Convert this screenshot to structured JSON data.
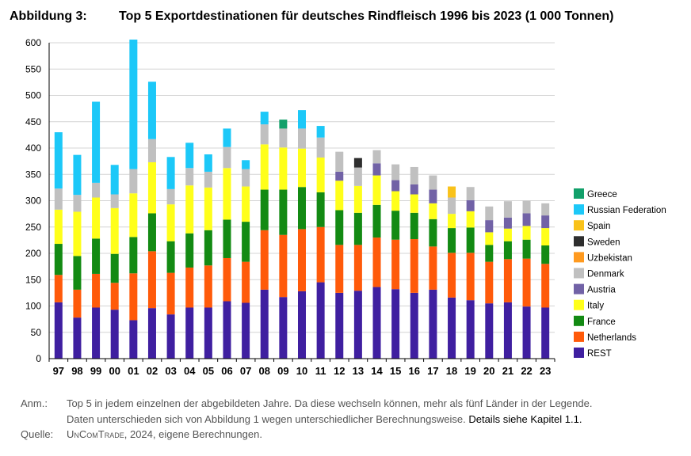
{
  "title": {
    "label": "Abbildung 3:",
    "text": "Top 5 Exportdestinationen für deutsches Rindfleisch 1996 bis 2023 (1 000 Tonnen)"
  },
  "notes": {
    "anm_label": "Anm.:",
    "anm_line1": "Top 5 in jedem einzelnen der abgebildeten Jahre. Da diese wechseln können, mehr als fünf Länder in der Legende.",
    "anm_line2": "Daten unterschieden sich von Abbildung 1 wegen unterschiedlicher Berechnungsweise.",
    "anm_link": "Details siehe Kapitel 1.1.",
    "source_label": "Quelle:",
    "source_name": "UnComTrade",
    "source_rest": ", 2024, eigene Berechnungen."
  },
  "chart_data": {
    "type": "bar",
    "stacked": true,
    "categories": [
      "97",
      "98",
      "99",
      "00",
      "01",
      "02",
      "03",
      "04",
      "05",
      "06",
      "07",
      "08",
      "09",
      "10",
      "11",
      "12",
      "13",
      "14",
      "15",
      "16",
      "17",
      "18",
      "19",
      "20",
      "21",
      "22",
      "23"
    ],
    "ylim": [
      0,
      600
    ],
    "yticks": [
      0,
      50,
      100,
      150,
      200,
      250,
      300,
      350,
      400,
      450,
      500,
      550,
      600
    ],
    "grid": true,
    "legend_position": "right",
    "series": [
      {
        "name": "REST",
        "color": "#3f1fa0",
        "values": [
          107,
          78,
          97,
          93,
          73,
          96,
          84,
          97,
          97,
          109,
          106,
          131,
          117,
          128,
          145,
          125,
          129,
          136,
          132,
          125,
          131,
          116,
          111,
          105,
          107,
          99,
          97
        ]
      },
      {
        "name": "Netherlands",
        "color": "#ff5a0a",
        "values": [
          52,
          53,
          64,
          51,
          89,
          108,
          79,
          76,
          80,
          82,
          78,
          113,
          118,
          118,
          105,
          91,
          87,
          94,
          94,
          102,
          82,
          85,
          90,
          79,
          82,
          91,
          83
        ]
      },
      {
        "name": "France",
        "color": "#138a13",
        "values": [
          59,
          64,
          67,
          55,
          69,
          72,
          60,
          65,
          67,
          73,
          76,
          77,
          86,
          80,
          66,
          66,
          61,
          62,
          55,
          50,
          52,
          47,
          48,
          32,
          34,
          36,
          35
        ]
      },
      {
        "name": "Italy",
        "color": "#ffff1a",
        "values": [
          65,
          84,
          78,
          87,
          83,
          97,
          70,
          91,
          81,
          98,
          67,
          86,
          80,
          73,
          66,
          56,
          51,
          56,
          37,
          35,
          30,
          27,
          31,
          24,
          24,
          26,
          33
        ]
      },
      {
        "name": "Austria",
        "color": "#7162a6",
        "values": [
          0,
          0,
          0,
          0,
          0,
          0,
          0,
          0,
          0,
          0,
          0,
          0,
          0,
          0,
          0,
          17,
          0,
          23,
          21,
          19,
          26,
          0,
          21,
          23,
          21,
          24,
          24
        ]
      },
      {
        "name": "Denmark",
        "color": "#c0c0c0",
        "values": [
          40,
          32,
          28,
          26,
          46,
          44,
          29,
          33,
          30,
          40,
          33,
          38,
          36,
          38,
          38,
          38,
          35,
          25,
          30,
          33,
          27,
          31,
          25,
          26,
          31,
          24,
          23
        ]
      },
      {
        "name": "Uzbekistan",
        "color": "#ff9a1f",
        "values": [
          0,
          0,
          0,
          0,
          0,
          0,
          0,
          0,
          0,
          0,
          0,
          0,
          0,
          0,
          0,
          0,
          0,
          0,
          0,
          0,
          0,
          0,
          0,
          0,
          0,
          0,
          0
        ]
      },
      {
        "name": "Sweden",
        "color": "#2e2e2e",
        "values": [
          0,
          0,
          0,
          0,
          0,
          0,
          0,
          0,
          0,
          0,
          0,
          0,
          0,
          0,
          0,
          0,
          18,
          0,
          0,
          0,
          0,
          0,
          0,
          0,
          0,
          0,
          0
        ]
      },
      {
        "name": "Spain",
        "color": "#f9c21a",
        "values": [
          0,
          0,
          0,
          0,
          0,
          0,
          0,
          0,
          0,
          0,
          0,
          0,
          0,
          0,
          0,
          0,
          0,
          0,
          0,
          0,
          0,
          21,
          0,
          0,
          0,
          0,
          0
        ]
      },
      {
        "name": "Russian Federation",
        "color": "#1cc8f8",
        "values": [
          107,
          76,
          154,
          56,
          246,
          109,
          61,
          48,
          33,
          35,
          17,
          24,
          0,
          35,
          22,
          0,
          0,
          0,
          0,
          0,
          0,
          0,
          0,
          0,
          0,
          0,
          0
        ]
      },
      {
        "name": "Greece",
        "color": "#12a06a",
        "values": [
          0,
          0,
          0,
          0,
          0,
          0,
          0,
          0,
          0,
          0,
          0,
          0,
          17,
          0,
          0,
          0,
          0,
          0,
          0,
          0,
          0,
          0,
          0,
          0,
          0,
          0,
          0
        ]
      }
    ],
    "legend_order": [
      "Greece",
      "Russian Federation",
      "Spain",
      "Sweden",
      "Uzbekistan",
      "Denmark",
      "Austria",
      "Italy",
      "France",
      "Netherlands",
      "REST"
    ]
  }
}
